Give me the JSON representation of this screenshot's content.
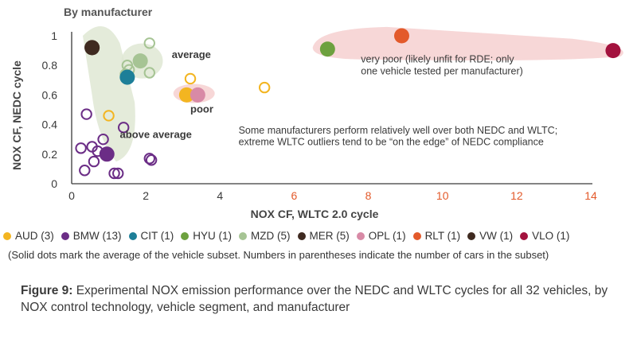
{
  "chart_data": {
    "type": "scatter",
    "title": "By manufacturer",
    "xlabel": "NOX CF, WLTC 2.0 cycle",
    "ylabel": "NOX CF, NEDC cycle",
    "xlim": [
      0,
      15
    ],
    "ylim": [
      0,
      1.05
    ],
    "x_ticks": [
      0,
      2,
      4,
      6,
      8,
      10,
      12,
      14
    ],
    "x_tick_labels": [
      "0",
      "2",
      "4",
      "6",
      "8",
      "10",
      "12",
      "14"
    ],
    "y_ticks": [
      0,
      0.2,
      0.4,
      0.6,
      0.8,
      1
    ],
    "y_tick_labels": [
      "0",
      "0.2",
      "0.4",
      "0.6",
      "0.8",
      "1"
    ],
    "grid": false,
    "series": [
      {
        "name": "AUD (3)",
        "color": "#f3b521",
        "points": [
          [
            1.0,
            0.46
          ],
          [
            3.2,
            0.71
          ],
          [
            5.2,
            0.65
          ]
        ],
        "average": [
          3.1,
          0.6
        ]
      },
      {
        "name": "BMW (13)",
        "color": "#6b2d86",
        "points": [
          [
            0.25,
            0.24
          ],
          [
            0.35,
            0.09
          ],
          [
            0.55,
            0.25
          ],
          [
            0.6,
            0.15
          ],
          [
            0.7,
            0.22
          ],
          [
            0.85,
            0.3
          ],
          [
            0.95,
            0.2
          ],
          [
            1.15,
            0.07
          ],
          [
            1.25,
            0.07
          ],
          [
            1.4,
            0.38
          ],
          [
            2.1,
            0.17
          ],
          [
            2.15,
            0.16
          ],
          [
            0.4,
            0.47
          ]
        ],
        "average": [
          0.95,
          0.2
        ]
      },
      {
        "name": "CIT (1)",
        "color": "#1d7f98",
        "points": [],
        "average": [
          1.5,
          0.72
        ]
      },
      {
        "name": "HYU (1)",
        "color": "#6da13f",
        "points": [],
        "average": [
          6.9,
          0.91
        ]
      },
      {
        "name": "MZD (5)",
        "color": "#a6c494",
        "points": [
          [
            1.5,
            0.8
          ],
          [
            1.55,
            0.77
          ],
          [
            2.1,
            0.95
          ],
          [
            2.1,
            0.75
          ],
          [
            1.45,
            0.74
          ]
        ],
        "average": [
          1.85,
          0.83
        ]
      },
      {
        "name": "MER (5)",
        "color": "#3f2a20",
        "points": [],
        "average": [
          0.55,
          0.92
        ]
      },
      {
        "name": "OPL (1)",
        "color": "#d88aa6",
        "points": [],
        "average": [
          3.4,
          0.6
        ]
      },
      {
        "name": "RLT (1)",
        "color": "#e35a2b",
        "points": [],
        "average": [
          8.9,
          1.0
        ]
      },
      {
        "name": "VW (1)",
        "color": "#3f2a20",
        "points": [],
        "average": [
          0.55,
          0.92
        ]
      },
      {
        "name": "VLO (1)",
        "color": "#a3123e",
        "points": [],
        "average": [
          14.6,
          0.9
        ]
      }
    ],
    "annotations": [
      {
        "text": "average",
        "x": 2.7,
        "y": 0.85
      },
      {
        "text": "poor",
        "x": 3.2,
        "y": 0.48
      },
      {
        "text": "above average",
        "x": 1.3,
        "y": 0.31
      },
      {
        "text": "very poor (likely unfit for RDE; only",
        "x": 7.8,
        "y": 0.82
      },
      {
        "text": "one vehicle tested per manufacturer)",
        "x": 7.8,
        "y": 0.74
      },
      {
        "text": "Some manufacturers perform relatively well over both NEDC and WLTC;",
        "x": 4.5,
        "y": 0.34
      },
      {
        "text": "extreme WLTC outliers tend to be “on the edge” of NEDC compliance",
        "x": 4.5,
        "y": 0.26
      }
    ]
  },
  "legend": [
    {
      "label": "AUD (3)",
      "color": "#f3b521"
    },
    {
      "label": "BMW (13)",
      "color": "#6b2d86"
    },
    {
      "label": "CIT (1)",
      "color": "#1d7f98"
    },
    {
      "label": "HYU (1)",
      "color": "#6da13f"
    },
    {
      "label": "MZD (5)",
      "color": "#a6c494"
    },
    {
      "label": "MER (5)",
      "color": "#3f2a20"
    },
    {
      "label": "OPL (1)",
      "color": "#d88aa6"
    },
    {
      "label": "RLT (1)",
      "color": "#e35a2b"
    },
    {
      "label": "VW (1)",
      "color": "#3f2a20"
    },
    {
      "label": "VLO (1)",
      "color": "#a3123e"
    }
  ],
  "note": "(Solid dots mark the average of the vehicle subset. Numbers in parentheses indicate the number of cars in the subset)",
  "caption": {
    "label": "Figure 9:",
    "text": "Experimental NOX emission performance over the NEDC and WLTC cycles for all 32 vehicles, by NOX control technology, vehicle segment, and manufacturer"
  },
  "colors": {
    "axis": "#3a3a3a",
    "tick_orange": "#e35a2b",
    "band_green": "#dfe8d4",
    "band_pink": "#f7d7d7"
  }
}
